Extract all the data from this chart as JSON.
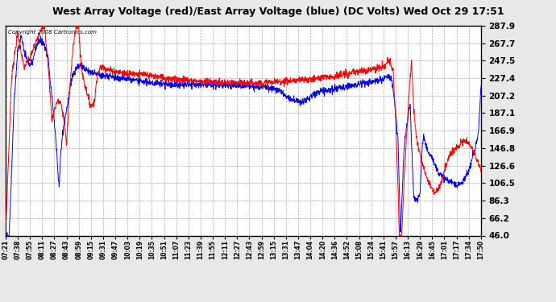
{
  "title": "West Array Voltage (red)/East Array Voltage (blue) (DC Volts) Wed Oct 29 17:51",
  "copyright": "Copyright 2008 Cartronics.com",
  "ylim": [
    46.0,
    287.9
  ],
  "yticks": [
    46.0,
    66.2,
    86.3,
    106.5,
    126.6,
    146.8,
    166.9,
    187.1,
    207.2,
    227.4,
    247.5,
    267.7,
    287.9
  ],
  "x_labels": [
    "07:21",
    "07:38",
    "07:55",
    "08:11",
    "08:27",
    "08:43",
    "08:59",
    "09:15",
    "09:31",
    "09:47",
    "10:03",
    "10:19",
    "10:35",
    "10:51",
    "11:07",
    "11:23",
    "11:39",
    "11:55",
    "12:11",
    "12:27",
    "12:43",
    "12:59",
    "13:15",
    "13:31",
    "13:47",
    "14:04",
    "14:20",
    "14:36",
    "14:52",
    "15:08",
    "15:24",
    "15:41",
    "15:57",
    "16:13",
    "16:29",
    "16:45",
    "17:01",
    "17:17",
    "17:34",
    "17:50"
  ],
  "bg_color": "#e8e8e8",
  "plot_bg": "#ffffff",
  "red_color": "#ff0000",
  "blue_color": "#0000ff",
  "grid_color": "#aaaaaa",
  "title_color": "#000000"
}
